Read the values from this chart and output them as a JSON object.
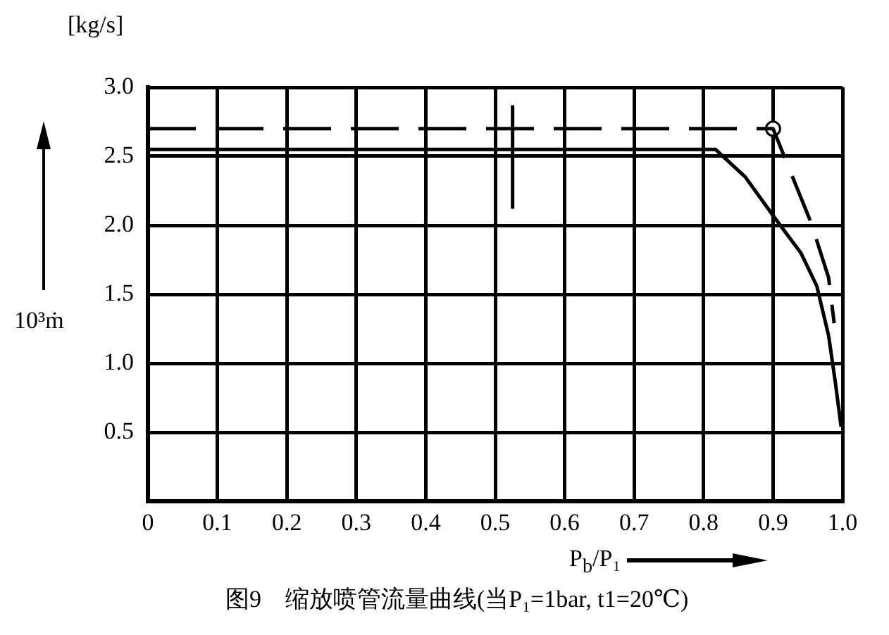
{
  "chart_data": {
    "type": "line",
    "title": "图9　缩放喷管流量曲线(当P₁=1bar, t1=20℃)",
    "xlabel": "P$_{b}$/P₁",
    "ylabel": "10³ṁ",
    "annotations": [
      "[kg/s]"
    ],
    "xlim": [
      0,
      1.0
    ],
    "ylim": [
      0,
      3.0
    ],
    "xticks": [
      {
        "value": 0,
        "label": "0"
      },
      0.1,
      0.2,
      0.3,
      0.4,
      0.5,
      0.6,
      0.7,
      0.8,
      0.9,
      {
        "value": 1.0,
        "label": "1.0"
      }
    ],
    "yticks": [
      {
        "value": 0,
        "label": null
      },
      0.5,
      {
        "value": 1.0,
        "label": "1.0"
      },
      1.5,
      {
        "value": 2.0,
        "label": "2.0"
      },
      2.5,
      {
        "value": 3.0,
        "label": "3.0"
      }
    ],
    "grid": true,
    "legend": false,
    "marker": "none",
    "line_style": "solid",
    "series": [
      {
        "color": "#000000",
        "x": [
          0,
          0.817,
          0.86,
          0.903,
          0.94,
          0.963,
          0.98,
          0.99,
          0.998
        ],
        "values": [
          2.55,
          2.55,
          2.35,
          2.05,
          1.8,
          1.56,
          1.2,
          0.85,
          0.54
        ]
      },
      {
        "color": "#000000",
        "line_style": "dashed",
        "x": [
          0,
          0.9,
          0.953,
          0.961,
          0.98,
          0.988
        ],
        "values": [
          2.7,
          2.7,
          2.04,
          1.92,
          1.62,
          1.29
        ]
      },
      {
        "color": "#000000",
        "x": [
          0.525,
          0.525
        ],
        "values": [
          2.12,
          2.87
        ]
      },
      {
        "color": "#000000",
        "type": "scatter",
        "marker": "circle",
        "x": [
          0.9
        ],
        "values": [
          2.7
        ]
      }
    ]
  }
}
